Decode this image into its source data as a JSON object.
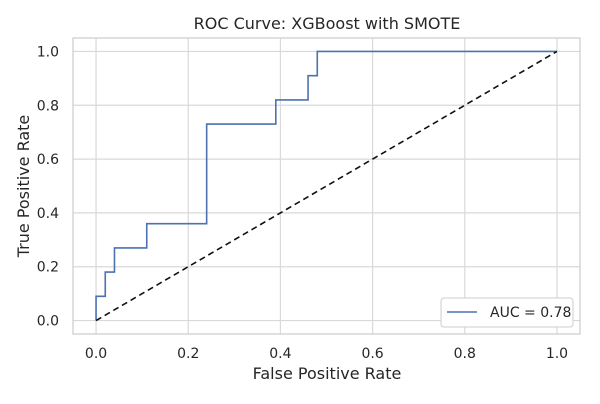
{
  "chart_data": {
    "type": "line",
    "title": "ROC Curve: XGBoost with SMOTE",
    "xlabel": "False Positive Rate",
    "ylabel": "True Positive Rate",
    "xlim": [
      -0.05,
      1.05
    ],
    "ylim": [
      -0.05,
      1.05
    ],
    "grid": true,
    "legend_position": "lower-right",
    "x_ticks": [
      0.0,
      0.2,
      0.4,
      0.6,
      0.8,
      1.0
    ],
    "x_tick_labels": [
      "0.0",
      "0.2",
      "0.4",
      "0.6",
      "0.8",
      "1.0"
    ],
    "y_ticks": [
      0.0,
      0.2,
      0.4,
      0.6,
      0.8,
      1.0
    ],
    "y_tick_labels": [
      "0.0",
      "0.2",
      "0.4",
      "0.6",
      "0.8",
      "1.0"
    ],
    "colors": {
      "roc": "#4c72b0",
      "diagonal": "#111111",
      "grid": "#d9d9d9",
      "frame": "#cccccc"
    },
    "series": [
      {
        "name": "AUC = 0.78",
        "style": "solid",
        "x": [
          0.0,
          0.0,
          0.02,
          0.02,
          0.04,
          0.04,
          0.11,
          0.11,
          0.24,
          0.24,
          0.39,
          0.39,
          0.46,
          0.46,
          0.48,
          0.48,
          1.0
        ],
        "y": [
          0.0,
          0.09,
          0.09,
          0.18,
          0.18,
          0.27,
          0.27,
          0.36,
          0.36,
          0.73,
          0.73,
          0.82,
          0.82,
          0.91,
          0.91,
          1.0,
          1.0
        ]
      },
      {
        "name": "",
        "style": "dashed",
        "x": [
          0.0,
          1.0
        ],
        "y": [
          0.0,
          1.0
        ]
      }
    ]
  }
}
